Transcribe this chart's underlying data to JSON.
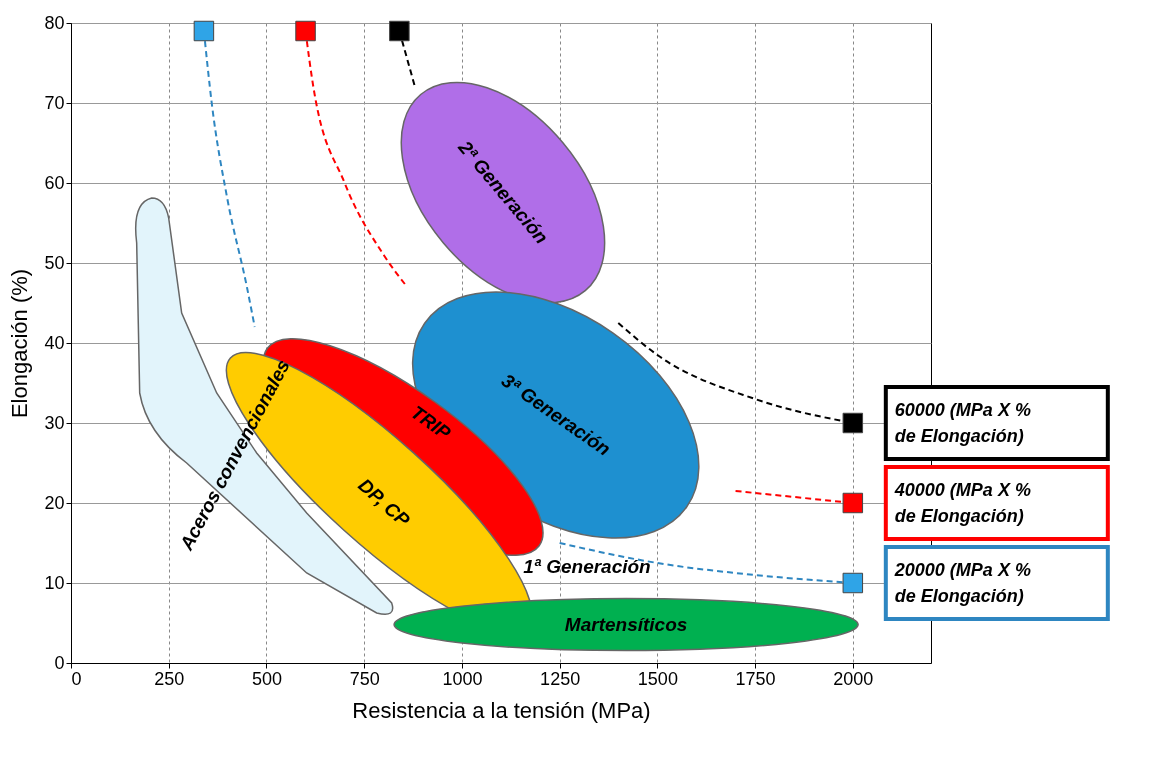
{
  "chart_data": {
    "type": "line",
    "xlabel": "Resistencia a la tensión (MPa)",
    "ylabel": "Elongación (%)",
    "xlim": [
      0,
      2200
    ],
    "xticks": [
      0,
      250,
      500,
      750,
      1000,
      1250,
      1500,
      1750,
      2000
    ],
    "ylim": [
      0,
      80
    ],
    "yticks": [
      0,
      10,
      20,
      30,
      40,
      50,
      60,
      70,
      80
    ],
    "grid": true,
    "legend": false,
    "line_style": "dashed",
    "series": [
      {
        "name": "20000 (MPa X % de Elongación)",
        "type": "line",
        "color": "#2e86c1",
        "x": [
          340,
          360,
          400,
          450,
          470,
          600,
          750,
          1000,
          1250,
          1500,
          1750,
          2000
        ],
        "values": [
          79,
          70,
          58,
          47,
          42,
          null,
          null,
          null,
          15,
          12.5,
          11,
          10
        ]
      },
      {
        "name": "40000 (MPa X % de Elongación)",
        "type": "line",
        "color": "#ff0000",
        "x": [
          600,
          620,
          700,
          800,
          860,
          1000,
          1250,
          1500,
          1700,
          2000
        ],
        "values": [
          79,
          72,
          60,
          51,
          47,
          null,
          null,
          null,
          21.5,
          20
        ]
      },
      {
        "name": "60000 (MPa X % de Elongación)",
        "type": "line",
        "color": "#000000",
        "x": [
          840,
          880,
          1000,
          1260,
          1400,
          1500,
          1750,
          2000
        ],
        "values": [
          79,
          72,
          null,
          null,
          42.5,
          38.5,
          33,
          30
        ]
      },
      {
        "type": "scatter",
        "marker": "square",
        "color": "#2fa4e7",
        "x": [
          340,
          2000
        ],
        "values": [
          79,
          10
        ]
      },
      {
        "type": "scatter",
        "marker": "square",
        "color": "#ff0000",
        "x": [
          600,
          2000
        ],
        "values": [
          79,
          20
        ]
      },
      {
        "type": "scatter",
        "marker": "square",
        "color": "#000000",
        "x": [
          840,
          2000
        ],
        "values": [
          79,
          30
        ]
      }
    ],
    "annotations": [
      "Aceros convencionales",
      "2ª Generación",
      "3ª Generación",
      "TRIP",
      "DP, CP",
      "Martensíticos",
      "1ª  Generación"
    ]
  }
}
